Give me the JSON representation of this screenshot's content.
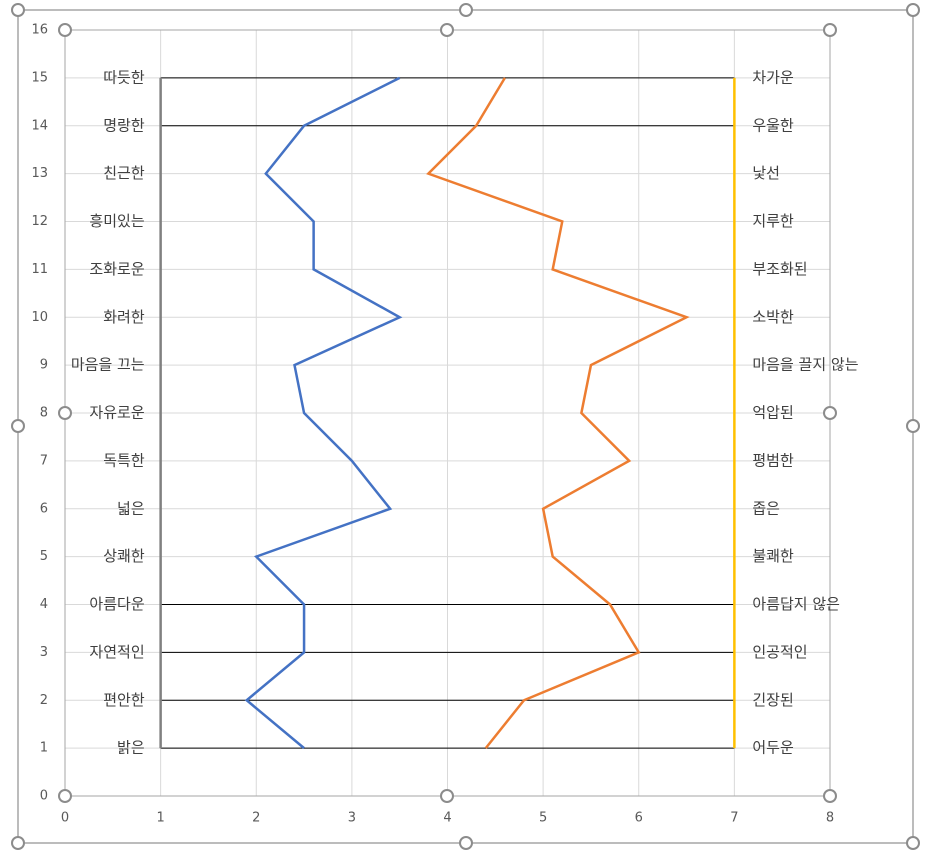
{
  "chart_data": {
    "type": "scatter",
    "xlim": [
      0,
      8
    ],
    "ylim": [
      0,
      16
    ],
    "xticks": [
      0,
      1,
      2,
      3,
      4,
      5,
      6,
      7,
      8
    ],
    "yticks": [
      0,
      1,
      2,
      3,
      4,
      5,
      6,
      7,
      8,
      9,
      10,
      11,
      12,
      13,
      14,
      15,
      16
    ],
    "grid": true,
    "y": [
      1,
      2,
      3,
      4,
      5,
      6,
      7,
      8,
      9,
      10,
      11,
      12,
      13,
      14,
      15
    ],
    "left_labels": [
      "밝은",
      "편안한",
      "자연적인",
      "아름다운",
      "상쾌한",
      "넓은",
      "독특한",
      "자유로운",
      "마음을 끄는",
      "화려한",
      "조화로운",
      "흥미있는",
      "친근한",
      "명랑한",
      "따듯한"
    ],
    "right_labels": [
      "어두운",
      "긴장된",
      "인공적인",
      "아름답지 않은",
      "불쾌한",
      "좁은",
      "평범한",
      "억압된",
      "마음을 끌지 않는",
      "소박한",
      "부조화된",
      "지루한",
      "낯선",
      "우울한",
      "차가운"
    ],
    "series": [
      {
        "color": "#4472c4",
        "x": [
          2.5,
          1.9,
          2.5,
          2.5,
          2.0,
          3.4,
          3.0,
          2.5,
          2.4,
          3.5,
          2.6,
          2.6,
          2.1,
          2.5,
          3.5
        ]
      },
      {
        "color": "#ed7d31",
        "x": [
          4.4,
          4.8,
          6.0,
          5.7,
          5.1,
          5.0,
          5.9,
          5.4,
          5.5,
          6.5,
          5.1,
          5.2,
          3.8,
          4.3,
          4.6
        ]
      }
    ],
    "vertical_lines": [
      {
        "x": 1,
        "color": "#808080"
      },
      {
        "x": 7,
        "color": "#ffc000"
      }
    ],
    "black_lines_y": [
      15,
      14,
      4,
      3,
      2,
      1
    ]
  }
}
